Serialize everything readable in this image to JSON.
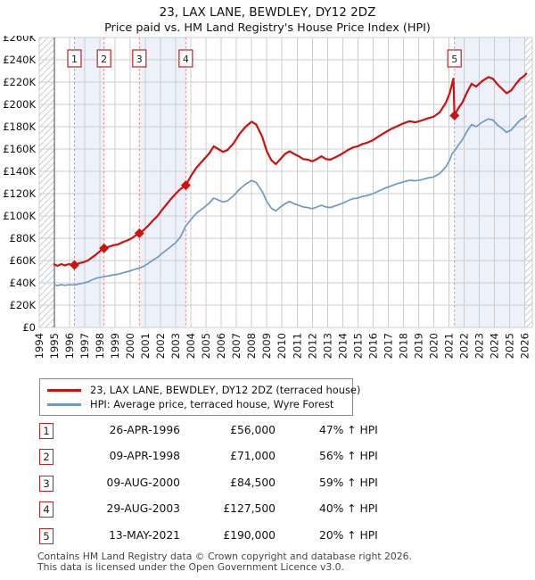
{
  "page": {
    "title_line1": "23, LAX LANE, BEWDLEY, DY12 2DZ",
    "title_line2": "Price paid vs. HM Land Registry's House Price Index (HPI)",
    "footer_line1": "Contains HM Land Registry data © Crown copyright and database right 2026.",
    "footer_line2": "This data is licensed under the Open Government Licence v3.0."
  },
  "legend": {
    "items": [
      {
        "id": "property",
        "color": "#cc1111",
        "label": "23, LAX LANE, BEWDLEY, DY12 2DZ (terraced house)"
      },
      {
        "id": "hpi",
        "color": "#6e99c7",
        "label": "HPI: Average price, terraced house, Wyre Forest"
      }
    ]
  },
  "sales_table": {
    "rows": [
      {
        "num": "1",
        "date": "26-APR-1996",
        "price": "£56,000",
        "vs_hpi": "47% ↑ HPI"
      },
      {
        "num": "2",
        "date": "09-APR-1998",
        "price": "£71,000",
        "vs_hpi": "56% ↑ HPI"
      },
      {
        "num": "3",
        "date": "09-AUG-2000",
        "price": "£84,500",
        "vs_hpi": "59% ↑ HPI"
      },
      {
        "num": "4",
        "date": "29-AUG-2003",
        "price": "£127,500",
        "vs_hpi": "40% ↑ HPI"
      },
      {
        "num": "5",
        "date": "13-MAY-2021",
        "price": "£190,000",
        "vs_hpi": "20% ↑ HPI"
      }
    ]
  },
  "chart_data": {
    "type": "line",
    "title": "23, LAX LANE, BEWDLEY, DY12 2DZ",
    "subtitle": "Price paid vs. HM Land Registry's House Price Index (HPI)",
    "xlabel": "",
    "ylabel": "",
    "x_range": [
      1994,
      2026.5
    ],
    "y_range": [
      0,
      260000
    ],
    "y_tick_step": 20000,
    "grid": true,
    "legend_position": "below",
    "x_tick_years": [
      1994,
      1995,
      1996,
      1997,
      1998,
      1999,
      2000,
      2001,
      2002,
      2003,
      2004,
      2005,
      2006,
      2007,
      2008,
      2009,
      2010,
      2011,
      2012,
      2013,
      2014,
      2015,
      2016,
      2017,
      2018,
      2019,
      2020,
      2021,
      2022,
      2023,
      2024,
      2025,
      2026
    ],
    "y_tick_labels": [
      "£0",
      "£20K",
      "£40K",
      "£60K",
      "£80K",
      "£100K",
      "£120K",
      "£140K",
      "£160K",
      "£180K",
      "£200K",
      "£220K",
      "£240K",
      "£260K"
    ],
    "styles": {
      "band_fill": "#edf2fa",
      "dash_color": "#f28080",
      "grid_color": "#cccccc",
      "hatch_color": "#c6cad2",
      "data_start_line": "#666666",
      "flag_border": "#bb2222",
      "property_color": "#cc1111",
      "hpi_color": "#6e99c7"
    },
    "shaded_spans": [
      [
        1996.32,
        1998.27
      ],
      [
        2000.6,
        2003.66
      ],
      [
        2021.37,
        2026.0
      ]
    ],
    "hatched_spans": [
      [
        1994.0,
        1995.0
      ],
      [
        2026.0,
        2026.5
      ]
    ],
    "sale_markers": [
      {
        "num": "1",
        "year": 1996.32,
        "price": 56000
      },
      {
        "num": "2",
        "year": 1998.27,
        "price": 71000
      },
      {
        "num": "3",
        "year": 2000.6,
        "price": 84500
      },
      {
        "num": "4",
        "year": 2003.66,
        "price": 127500
      },
      {
        "num": "5",
        "year": 2021.37,
        "price": 190000
      }
    ],
    "series": [
      {
        "name": "23, LAX LANE, BEWDLEY, DY12 2DZ (terraced house)",
        "color": "#cc1111",
        "width": 2.2,
        "points": [
          [
            1995.0,
            56500
          ],
          [
            1995.2,
            55200
          ],
          [
            1995.45,
            56800
          ],
          [
            1995.7,
            55600
          ],
          [
            1995.95,
            56900
          ],
          [
            1996.15,
            56200
          ],
          [
            1996.32,
            56000
          ],
          [
            1996.6,
            57500
          ],
          [
            1996.9,
            58500
          ],
          [
            1997.2,
            60000
          ],
          [
            1997.5,
            63000
          ],
          [
            1997.8,
            66000
          ],
          [
            1998.05,
            69000
          ],
          [
            1998.27,
            71000
          ],
          [
            1998.6,
            72500
          ],
          [
            1998.9,
            73800
          ],
          [
            1999.2,
            74500
          ],
          [
            1999.5,
            76500
          ],
          [
            1999.8,
            78000
          ],
          [
            2000.1,
            80000
          ],
          [
            2000.35,
            82500
          ],
          [
            2000.6,
            84500
          ],
          [
            2000.9,
            87500
          ],
          [
            2001.2,
            91500
          ],
          [
            2001.5,
            96000
          ],
          [
            2001.8,
            100000
          ],
          [
            2002.1,
            105500
          ],
          [
            2002.4,
            110500
          ],
          [
            2002.7,
            115500
          ],
          [
            2003.0,
            120000
          ],
          [
            2003.3,
            124000
          ],
          [
            2003.66,
            127500
          ],
          [
            2004.0,
            136000
          ],
          [
            2004.4,
            144000
          ],
          [
            2004.8,
            150000
          ],
          [
            2005.2,
            156000
          ],
          [
            2005.5,
            162500
          ],
          [
            2005.8,
            160000
          ],
          [
            2006.1,
            157500
          ],
          [
            2006.4,
            159000
          ],
          [
            2006.8,
            165000
          ],
          [
            2007.2,
            173500
          ],
          [
            2007.6,
            180000
          ],
          [
            2008.0,
            184500
          ],
          [
            2008.3,
            182000
          ],
          [
            2008.7,
            171000
          ],
          [
            2009.0,
            158000
          ],
          [
            2009.3,
            150000
          ],
          [
            2009.6,
            146500
          ],
          [
            2009.9,
            151000
          ],
          [
            2010.2,
            155500
          ],
          [
            2010.5,
            158000
          ],
          [
            2010.8,
            155500
          ],
          [
            2011.1,
            153500
          ],
          [
            2011.4,
            151000
          ],
          [
            2011.7,
            150500
          ],
          [
            2012.0,
            149000
          ],
          [
            2012.3,
            151000
          ],
          [
            2012.6,
            153500
          ],
          [
            2012.9,
            151000
          ],
          [
            2013.2,
            150500
          ],
          [
            2013.5,
            152500
          ],
          [
            2013.8,
            154500
          ],
          [
            2014.1,
            157000
          ],
          [
            2014.4,
            159500
          ],
          [
            2014.7,
            161500
          ],
          [
            2015.0,
            162500
          ],
          [
            2015.3,
            164500
          ],
          [
            2015.6,
            165500
          ],
          [
            2016.0,
            168000
          ],
          [
            2016.4,
            171500
          ],
          [
            2016.8,
            175000
          ],
          [
            2017.2,
            178000
          ],
          [
            2017.6,
            180500
          ],
          [
            2018.0,
            183000
          ],
          [
            2018.4,
            185000
          ],
          [
            2018.8,
            184000
          ],
          [
            2019.2,
            185500
          ],
          [
            2019.6,
            187500
          ],
          [
            2020.0,
            189000
          ],
          [
            2020.4,
            193000
          ],
          [
            2020.8,
            201500
          ],
          [
            2021.05,
            210000
          ],
          [
            2021.2,
            218000
          ],
          [
            2021.3,
            223000
          ],
          [
            2021.37,
            190000
          ],
          [
            2021.6,
            196000
          ],
          [
            2021.9,
            202000
          ],
          [
            2022.2,
            211000
          ],
          [
            2022.5,
            218500
          ],
          [
            2022.8,
            216000
          ],
          [
            2023.2,
            221000
          ],
          [
            2023.6,
            224500
          ],
          [
            2023.9,
            223000
          ],
          [
            2024.2,
            218000
          ],
          [
            2024.5,
            214000
          ],
          [
            2024.8,
            210000
          ],
          [
            2025.1,
            212500
          ],
          [
            2025.4,
            218000
          ],
          [
            2025.7,
            223000
          ],
          [
            2026.0,
            226000
          ],
          [
            2026.1,
            227500
          ]
        ]
      },
      {
        "name": "HPI: Average price, terraced house, Wyre Forest",
        "color": "#6e99c7",
        "width": 1.7,
        "points": [
          [
            1995.0,
            38300
          ],
          [
            1995.2,
            37600
          ],
          [
            1995.45,
            38400
          ],
          [
            1995.7,
            37800
          ],
          [
            1995.95,
            38500
          ],
          [
            1996.15,
            38200
          ],
          [
            1996.32,
            38100
          ],
          [
            1996.6,
            39000
          ],
          [
            1996.9,
            39800
          ],
          [
            1997.2,
            40800
          ],
          [
            1997.5,
            42800
          ],
          [
            1997.8,
            44300
          ],
          [
            1998.05,
            45000
          ],
          [
            1998.27,
            45500
          ],
          [
            1998.6,
            46400
          ],
          [
            1998.9,
            47200
          ],
          [
            1999.2,
            47700
          ],
          [
            1999.5,
            49000
          ],
          [
            1999.8,
            50000
          ],
          [
            2000.1,
            51200
          ],
          [
            2000.35,
            52300
          ],
          [
            2000.6,
            53200
          ],
          [
            2000.9,
            55000
          ],
          [
            2001.2,
            57500
          ],
          [
            2001.5,
            60500
          ],
          [
            2001.8,
            63000
          ],
          [
            2002.1,
            66500
          ],
          [
            2002.4,
            69500
          ],
          [
            2002.7,
            72800
          ],
          [
            2003.0,
            76000
          ],
          [
            2003.3,
            81000
          ],
          [
            2003.66,
            91000
          ],
          [
            2004.0,
            97000
          ],
          [
            2004.4,
            103000
          ],
          [
            2004.8,
            107000
          ],
          [
            2005.2,
            111500
          ],
          [
            2005.5,
            116000
          ],
          [
            2005.8,
            114300
          ],
          [
            2006.1,
            112500
          ],
          [
            2006.4,
            113500
          ],
          [
            2006.8,
            118000
          ],
          [
            2007.2,
            124000
          ],
          [
            2007.6,
            128500
          ],
          [
            2008.0,
            131800
          ],
          [
            2008.3,
            130000
          ],
          [
            2008.7,
            122000
          ],
          [
            2009.0,
            113000
          ],
          [
            2009.3,
            107000
          ],
          [
            2009.6,
            104500
          ],
          [
            2009.9,
            108000
          ],
          [
            2010.2,
            111000
          ],
          [
            2010.5,
            113000
          ],
          [
            2010.8,
            111000
          ],
          [
            2011.1,
            109500
          ],
          [
            2011.4,
            108000
          ],
          [
            2011.7,
            107500
          ],
          [
            2012.0,
            106500
          ],
          [
            2012.3,
            108000
          ],
          [
            2012.6,
            109500
          ],
          [
            2012.9,
            108000
          ],
          [
            2013.2,
            107500
          ],
          [
            2013.5,
            109000
          ],
          [
            2013.8,
            110500
          ],
          [
            2014.1,
            112000
          ],
          [
            2014.4,
            114000
          ],
          [
            2014.7,
            115500
          ],
          [
            2015.0,
            116000
          ],
          [
            2015.3,
            117500
          ],
          [
            2015.6,
            118200
          ],
          [
            2016.0,
            120000
          ],
          [
            2016.4,
            122500
          ],
          [
            2016.8,
            125000
          ],
          [
            2017.2,
            127000
          ],
          [
            2017.6,
            129000
          ],
          [
            2018.0,
            130500
          ],
          [
            2018.4,
            132000
          ],
          [
            2018.8,
            131500
          ],
          [
            2019.2,
            132500
          ],
          [
            2019.6,
            134000
          ],
          [
            2020.0,
            135000
          ],
          [
            2020.4,
            138000
          ],
          [
            2020.8,
            144000
          ],
          [
            2021.05,
            150000
          ],
          [
            2021.2,
            155500
          ],
          [
            2021.37,
            158300
          ],
          [
            2021.6,
            163000
          ],
          [
            2021.9,
            168500
          ],
          [
            2022.2,
            176000
          ],
          [
            2022.5,
            182000
          ],
          [
            2022.8,
            180000
          ],
          [
            2023.2,
            184000
          ],
          [
            2023.6,
            187000
          ],
          [
            2023.9,
            186000
          ],
          [
            2024.2,
            181500
          ],
          [
            2024.5,
            178500
          ],
          [
            2024.8,
            175000
          ],
          [
            2025.1,
            177000
          ],
          [
            2025.4,
            181500
          ],
          [
            2025.7,
            186000
          ],
          [
            2026.0,
            188500
          ],
          [
            2026.1,
            189500
          ]
        ]
      }
    ]
  }
}
